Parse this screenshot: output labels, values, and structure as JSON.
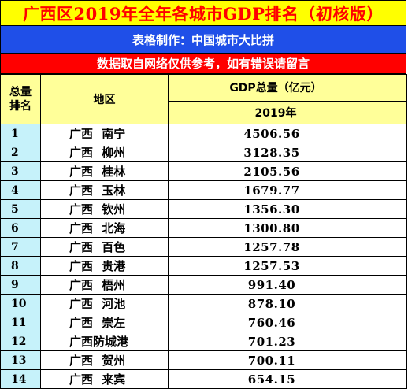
{
  "title": "广西区2019年全年各城市GDP排名（初核版）",
  "maker": "表格制作：中国城市大比拼",
  "notice": "数据取自网络仅供参考，如有错误请留言",
  "table": {
    "header": {
      "rank_line1": "总量",
      "rank_line2": "排名",
      "region": "地区",
      "gdp": "GDP总量（亿元）",
      "year": "2019年"
    },
    "rows": [
      {
        "rank": "1",
        "region": "广西 南宁",
        "value": "4506.56"
      },
      {
        "rank": "2",
        "region": "广西 柳州",
        "value": "3128.35"
      },
      {
        "rank": "3",
        "region": "广西 桂林",
        "value": "2105.56"
      },
      {
        "rank": "4",
        "region": "广西 玉林",
        "value": "1679.77"
      },
      {
        "rank": "5",
        "region": "广西 钦州",
        "value": "1356.30"
      },
      {
        "rank": "6",
        "region": "广西 北海",
        "value": "1300.80"
      },
      {
        "rank": "7",
        "region": "广西 百色",
        "value": "1257.78"
      },
      {
        "rank": "8",
        "region": "广西 贵港",
        "value": "1257.53"
      },
      {
        "rank": "9",
        "region": "广西 梧州",
        "value": "991.40"
      },
      {
        "rank": "10",
        "region": "广西 河池",
        "value": "878.10"
      },
      {
        "rank": "11",
        "region": "广西 崇左",
        "value": "760.46"
      },
      {
        "rank": "12",
        "region": "广西防城港",
        "value": "701.23"
      },
      {
        "rank": "13",
        "region": "广西 贺州",
        "value": "700.11"
      },
      {
        "rank": "14",
        "region": "广西 来宾",
        "value": "654.15"
      }
    ]
  },
  "colors": {
    "title_bg": "#ffff00",
    "title_text": "#ff0000",
    "maker_bg": "#1f4fe8",
    "notice_bg": "#ff0000",
    "header_bg": "#ffff99",
    "rank_bg": "#c6f2fa"
  }
}
